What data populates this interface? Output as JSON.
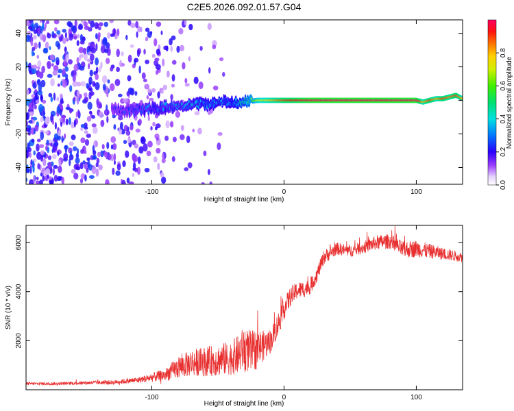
{
  "chart_data": [
    {
      "type": "heatmap",
      "title": "C2E5.2026.092.01.57.G04",
      "xlabel": "Height of straight line (km)",
      "ylabel": "Frequency (Hz)",
      "xlim": [
        -195,
        135
      ],
      "ylim": [
        -50,
        48
      ],
      "xticks": [
        -100,
        0,
        100
      ],
      "xtick_labels": [
        "-100",
        "0",
        "100"
      ],
      "yticks": [
        -40,
        -20,
        0,
        20,
        40
      ],
      "ytick_labels": [
        "-40",
        "-20",
        "0",
        "20",
        "40"
      ],
      "colorbar": {
        "label": "Normalized spectral amplitude",
        "range": [
          0,
          1
        ],
        "ticks": [
          0.0,
          0.2,
          0.4,
          0.6,
          0.8
        ],
        "tick_labels": [
          "0.0",
          "0.2",
          "0.4",
          "0.6",
          "0.8"
        ]
      },
      "ridge": {
        "x": [
          -130,
          -115,
          -100,
          -80,
          -60,
          -40,
          -30,
          -20,
          -10,
          0,
          20,
          50,
          100,
          105,
          110,
          115,
          120,
          125,
          130,
          135
        ],
        "freq_hz": [
          -6,
          -6,
          -5,
          -3,
          -2,
          -1,
          -1,
          0,
          0,
          0,
          0,
          0,
          0,
          -1,
          0,
          1,
          1,
          2,
          3,
          1
        ],
        "amplitude": [
          0.2,
          0.25,
          0.3,
          0.3,
          0.35,
          0.35,
          0.45,
          0.7,
          0.8,
          0.9,
          1.0,
          1.0,
          1.0,
          0.8,
          0.9,
          0.8,
          0.9,
          0.85,
          0.9,
          0.8
        ]
      },
      "noise_extent_x": [
        -195,
        -45
      ]
    },
    {
      "type": "line",
      "xlabel": "Height of straight line (km)",
      "ylabel": "SNR (10 * v/v)",
      "xlim": [
        -195,
        135
      ],
      "ylim": [
        0,
        6700
      ],
      "xticks": [
        -100,
        0,
        100
      ],
      "xtick_labels": [
        "-100",
        "0",
        "100"
      ],
      "yticks": [
        2000,
        4000,
        6000
      ],
      "ytick_labels": [
        "2000",
        "4000",
        "6000"
      ],
      "series": [
        {
          "name": "SNR",
          "color": "#e83030",
          "x": [
            -195,
            -170,
            -150,
            -130,
            -110,
            -90,
            -80,
            -70,
            -60,
            -50,
            -40,
            -35,
            -30,
            -25,
            -20,
            -15,
            -10,
            -5,
            0,
            5,
            10,
            15,
            20,
            25,
            30,
            40,
            50,
            60,
            70,
            80,
            90,
            100,
            110,
            120,
            135
          ],
          "y": [
            250,
            250,
            280,
            300,
            400,
            600,
            900,
            1100,
            1150,
            1200,
            1300,
            1400,
            1700,
            1500,
            1700,
            1800,
            2000,
            2600,
            3300,
            3800,
            4050,
            4100,
            4200,
            4700,
            5400,
            5750,
            5650,
            5800,
            6000,
            6050,
            5700,
            5750,
            5650,
            5550,
            5400
          ],
          "noise": [
            60,
            60,
            70,
            90,
            120,
            250,
            450,
            550,
            600,
            650,
            700,
            800,
            900,
            900,
            800,
            600,
            500,
            500,
            450,
            400,
            350,
            350,
            300,
            300,
            300,
            250,
            250,
            250,
            300,
            300,
            350,
            350,
            300,
            250,
            200
          ]
        }
      ]
    }
  ]
}
